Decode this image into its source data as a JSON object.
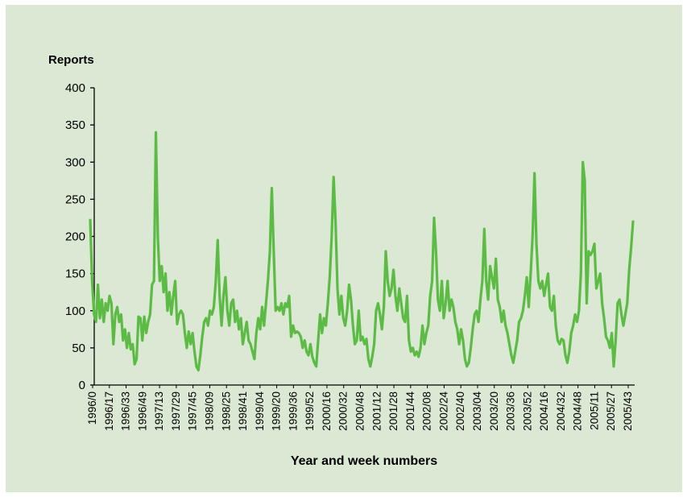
{
  "chart_data": {
    "type": "line",
    "title": "",
    "ylabel": "Reports",
    "xlabel": "Year and week numbers",
    "ylim": [
      0,
      400
    ],
    "yticks": [
      0,
      50,
      100,
      150,
      200,
      250,
      300,
      350,
      400
    ],
    "xtick_labels": [
      "1996/0",
      "1996/17",
      "1996/33",
      "1996/49",
      "1997/13",
      "1997/29",
      "1997/45",
      "1998/09",
      "1998/25",
      "1998/41",
      "1999/04",
      "1999/20",
      "1999/36",
      "1999/52",
      "2000/16",
      "2000/32",
      "2000/48",
      "2001/12",
      "2001/28",
      "2001/44",
      "2002/08",
      "2002/24",
      "2002/40",
      "2003/04",
      "2003/20",
      "2003/36",
      "2003/52",
      "2004/16",
      "2004/32",
      "2004/48",
      "2005/11",
      "2005/27",
      "2005/43"
    ],
    "grid": false,
    "line_color": "#5cbb45",
    "series": [
      {
        "name": "",
        "values": [
          222,
          140,
          95,
          85,
          135,
          90,
          115,
          85,
          110,
          100,
          120,
          110,
          55,
          95,
          105,
          85,
          95,
          60,
          75,
          50,
          70,
          48,
          55,
          28,
          35,
          92,
          90,
          60,
          92,
          70,
          85,
          95,
          135,
          140,
          340,
          200,
          140,
          160,
          125,
          150,
          100,
          125,
          95,
          120,
          140,
          82,
          95,
          100,
          95,
          70,
          50,
          72,
          55,
          70,
          45,
          25,
          20,
          40,
          65,
          85,
          90,
          80,
          100,
          95,
          105,
          140,
          195,
          120,
          80,
          120,
          145,
          100,
          80,
          110,
          115,
          85,
          100,
          75,
          90,
          55,
          70,
          85,
          60,
          55,
          45,
          35,
          70,
          90,
          75,
          105,
          80,
          110,
          140,
          180,
          265,
          180,
          100,
          105,
          100,
          110,
          95,
          110,
          105,
          120,
          65,
          80,
          70,
          72,
          70,
          65,
          50,
          60,
          45,
          40,
          55,
          38,
          30,
          25,
          60,
          95,
          70,
          90,
          80,
          110,
          145,
          200,
          280,
          220,
          130,
          95,
          120,
          90,
          80,
          100,
          135,
          115,
          80,
          55,
          60,
          100,
          60,
          65,
          55,
          62,
          35,
          25,
          38,
          55,
          100,
          110,
          95,
          75,
          105,
          180,
          140,
          120,
          130,
          155,
          120,
          100,
          130,
          110,
          90,
          85,
          120,
          60,
          45,
          50,
          40,
          45,
          38,
          50,
          80,
          55,
          70,
          80,
          120,
          140,
          225,
          180,
          115,
          100,
          140,
          90,
          110,
          140,
          100,
          115,
          105,
          85,
          75,
          55,
          75,
          60,
          35,
          25,
          30,
          50,
          75,
          95,
          100,
          85,
          115,
          140,
          210,
          140,
          115,
          160,
          145,
          130,
          170,
          115,
          105,
          85,
          100,
          80,
          70,
          55,
          40,
          30,
          45,
          60,
          85,
          90,
          100,
          120,
          145,
          105,
          150,
          200,
          285,
          190,
          140,
          130,
          140,
          120,
          135,
          150,
          105,
          100,
          120,
          80,
          60,
          55,
          62,
          60,
          40,
          30,
          45,
          70,
          80,
          95,
          85,
          100,
          150,
          300,
          275,
          110,
          180,
          175,
          180,
          190,
          130,
          140,
          150,
          110,
          90,
          65,
          60,
          50,
          70,
          25,
          60,
          110,
          115,
          95,
          80,
          95,
          110,
          155,
          185,
          220
        ]
      }
    ]
  }
}
